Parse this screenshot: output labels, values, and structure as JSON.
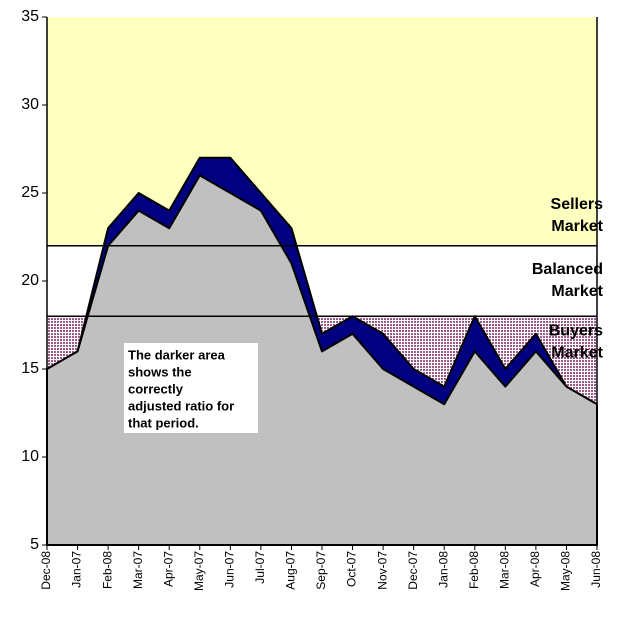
{
  "chart_data": {
    "type": "area",
    "categories": [
      "Dec-08",
      "Jan-07",
      "Feb-08",
      "Mar-07",
      "Apr-07",
      "May-07",
      "Jun-07",
      "Jul-07",
      "Aug-07",
      "Sep-07",
      "Oct-07",
      "Nov-07",
      "Dec-07",
      "Jan-08",
      "Feb-08",
      "Mar-08",
      "Apr-08",
      "May-08",
      "Jun-08"
    ],
    "series": [
      {
        "color": "#000080",
        "values": [
          15,
          16,
          23,
          25,
          24,
          27,
          27,
          25,
          23,
          17,
          18,
          17,
          15,
          14,
          18,
          15,
          17,
          14,
          13
        ]
      },
      {
        "color": "#c0c0c0",
        "values": [
          15,
          16,
          22,
          24,
          23,
          26,
          25,
          24,
          21,
          16,
          17,
          15,
          14,
          13,
          16,
          14,
          16,
          14,
          13
        ]
      }
    ],
    "ylim": [
      5,
      35
    ],
    "yticks": [
      5,
      10,
      15,
      20,
      25,
      30,
      35
    ],
    "bands": [
      {
        "from": 22,
        "to": 35,
        "color": "#ffffc0",
        "label": [
          "Sellers",
          "Market"
        ]
      },
      {
        "from": 18,
        "to": 22,
        "color": "#ffffff",
        "label": [
          "Balanced",
          "Market"
        ]
      },
      {
        "from": 5,
        "to": 18,
        "color": "#9c5a8c",
        "label": [
          "Buyers",
          "Market"
        ]
      }
    ],
    "note": [
      "The darker area",
      "shows the",
      "correctly",
      "adjusted ratio for",
      "that period."
    ]
  }
}
